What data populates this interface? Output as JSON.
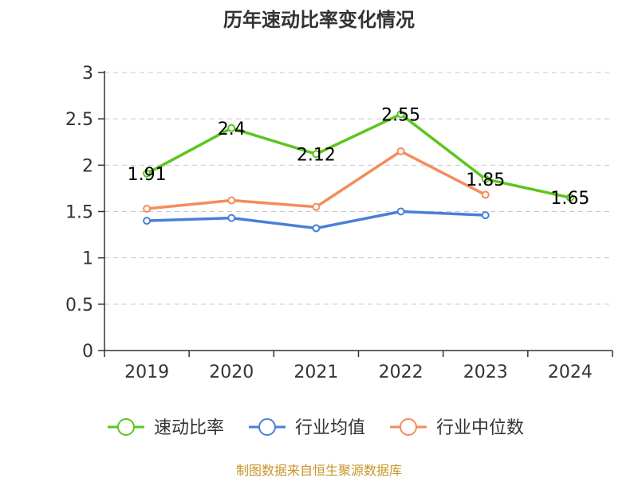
{
  "chart_data": {
    "type": "line",
    "title": "历年速动比率变化情况",
    "categories": [
      "2019",
      "2020",
      "2021",
      "2022",
      "2023",
      "2024"
    ],
    "ylim": [
      0,
      3
    ],
    "yticks": [
      "0",
      "0.5",
      "1",
      "1.5",
      "2",
      "2.5",
      "3"
    ],
    "grid": true,
    "legend_position": "bottom",
    "series": [
      {
        "name": "速动比率",
        "color": "#5cc51f",
        "values": [
          1.91,
          2.4,
          2.12,
          2.55,
          1.85,
          1.65
        ],
        "labels": [
          "1.91",
          "2.4",
          "2.12",
          "2.55",
          "1.85",
          "1.65"
        ],
        "show_labels": true
      },
      {
        "name": "行业均值",
        "color": "#4a7fd8",
        "values": [
          1.4,
          1.43,
          1.32,
          1.5,
          1.46,
          null
        ],
        "show_labels": false
      },
      {
        "name": "行业中位数",
        "color": "#f48c5c",
        "values": [
          1.53,
          1.62,
          1.55,
          2.15,
          1.68,
          null
        ],
        "show_labels": false
      }
    ]
  },
  "footer": {
    "source": "制图数据来自恒生聚源数据库"
  }
}
